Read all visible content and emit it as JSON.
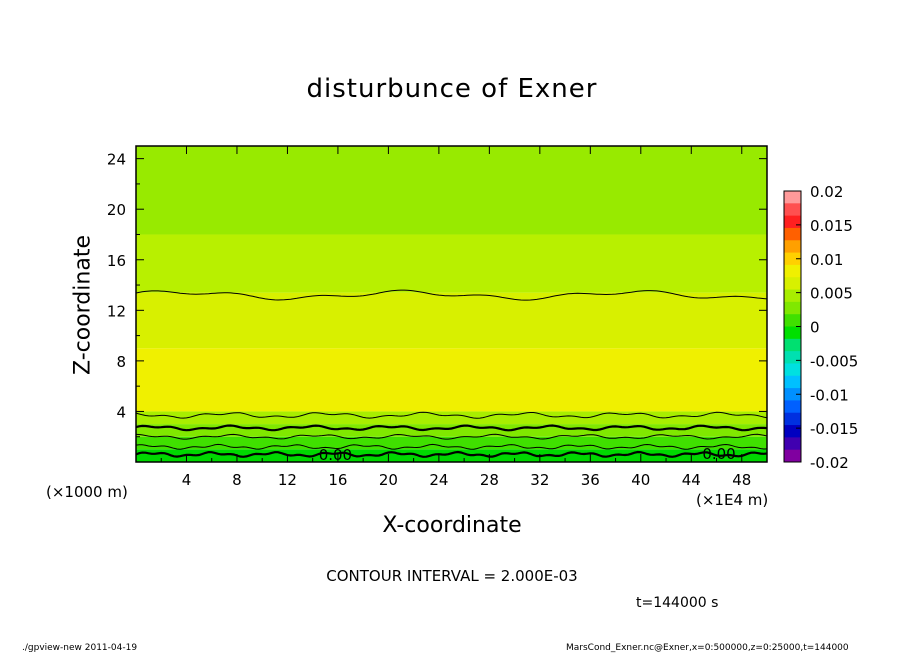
{
  "title": "disturbunce of Exner",
  "x_axis_label": "X-coordinate",
  "y_axis_label": "Z-coordinate",
  "x_unit_note": "(×1000 m)",
  "x_scale_note": "(×1E4 m)",
  "contour_interval": "CONTOUR INTERVAL = 2.000E-03",
  "time_label": "t=144000 s",
  "footer_left": "./gpview-new  2011-04-19",
  "footer_right": "MarsCond_Exner.nc@Exner,x=0:500000,z=0:25000,t=144000",
  "chart_data": {
    "type": "heatmap",
    "title": "disturbunce of Exner",
    "xlabel": "X-coordinate",
    "ylabel": "Z-coordinate",
    "xlim": [
      0,
      50
    ],
    "ylim": [
      0,
      25
    ],
    "x_ticks": [
      "4",
      "8",
      "12",
      "16",
      "20",
      "24",
      "28",
      "32",
      "36",
      "40",
      "44",
      "48"
    ],
    "y_ticks": [
      "4",
      "8",
      "12",
      "16",
      "20",
      "24"
    ],
    "contour_interval": 0.002,
    "contour_labels": [
      "0.00",
      "0.00"
    ],
    "colorbar": {
      "ticks": [
        "0.02",
        "0.015",
        "0.01",
        "0.005",
        "0",
        "-0.005",
        "-0.01",
        "-0.015",
        "-0.02"
      ],
      "colors": [
        "#ff9a9a",
        "#ff5050",
        "#ff2020",
        "#ff6000",
        "#ffa000",
        "#ffd000",
        "#f0f000",
        "#d8f000",
        "#a8ee00",
        "#80e800",
        "#40e000",
        "#00e000",
        "#00e070",
        "#00e0b0",
        "#00e0e0",
        "#00c0ff",
        "#0090ff",
        "#0060ff",
        "#0030e0",
        "#0000c0",
        "#4000b0",
        "#8000a0"
      ]
    },
    "bands": [
      {
        "z_from": 0,
        "z_to": 1,
        "color": "#00d800"
      },
      {
        "z_from": 1,
        "z_to": 2,
        "color": "#40e000"
      },
      {
        "z_from": 2,
        "z_to": 3,
        "color": "#80e800"
      },
      {
        "z_from": 3,
        "z_to": 4,
        "color": "#a8ee00"
      },
      {
        "z_from": 4,
        "z_to": 9,
        "color": "#f0f000"
      },
      {
        "z_from": 9,
        "z_to": 13.4,
        "color": "#d8f000"
      },
      {
        "z_from": 13.4,
        "z_to": 18,
        "color": "#b8f000"
      },
      {
        "z_from": 18,
        "z_to": 25,
        "color": "#98ea00"
      }
    ]
  }
}
